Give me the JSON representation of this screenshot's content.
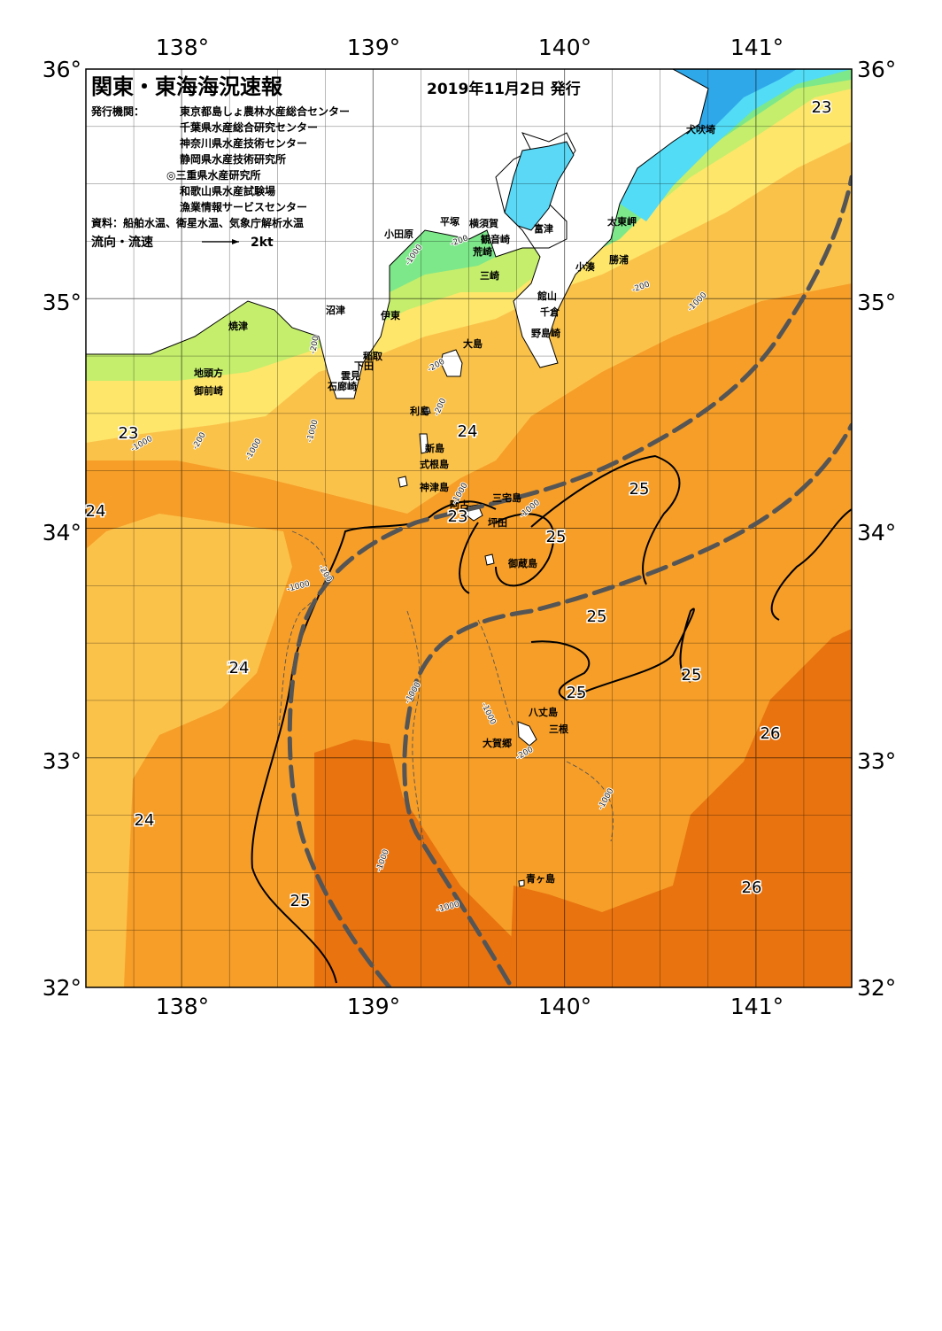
{
  "header": {
    "title": "関東・東海海況速報",
    "date": "2019年11月2日 発行",
    "issuer_label": "発行機関：",
    "issuers": [
      "東京都島しょ農林水産総合センター",
      "千葉県水産総合研究センター",
      "神奈川県水産技術センター",
      "静岡県水産技術研究所",
      "◎三重県水産研究所",
      "和歌山県水産試験場",
      "漁業情報サービスセンター"
    ],
    "sources": "資料：船舶水温、衛星水温、気象庁解析水温",
    "current_label": "流向・流速",
    "current_scale": "2kt"
  },
  "axes": {
    "lon_labels": [
      "138°",
      "139°",
      "140°",
      "141°"
    ],
    "lat_labels": [
      "36°",
      "35°",
      "34°",
      "33°",
      "32°"
    ]
  },
  "colors": {
    "c20": "#2fa8ea",
    "c21": "#52dcf6",
    "c21b": "#5ae6c8",
    "c22": "#7de88a",
    "c22b": "#c4ee6c",
    "c23": "#fde66a",
    "c24": "#fbc24a",
    "c25": "#f69e28",
    "c26": "#e8730f",
    "land": "#ffffff",
    "kuroshio": "#555555"
  },
  "places": [
    {
      "name": "犬吠埼"
    },
    {
      "name": "太東岬"
    },
    {
      "name": "勝浦"
    },
    {
      "name": "小湊"
    },
    {
      "name": "館山"
    },
    {
      "name": "千倉"
    },
    {
      "name": "野島崎"
    },
    {
      "name": "富津"
    },
    {
      "name": "横須賀"
    },
    {
      "name": "観音崎"
    },
    {
      "name": "荒崎"
    },
    {
      "name": "三崎"
    },
    {
      "name": "平塚"
    },
    {
      "name": "小田原"
    },
    {
      "name": "伊東"
    },
    {
      "name": "沼津"
    },
    {
      "name": "焼津"
    },
    {
      "name": "稲取"
    },
    {
      "name": "下田"
    },
    {
      "name": "雲見"
    },
    {
      "name": "石廊崎"
    },
    {
      "name": "地頭方"
    },
    {
      "name": "御前崎"
    },
    {
      "name": "大島"
    },
    {
      "name": "利島"
    },
    {
      "name": "新島"
    },
    {
      "name": "式根島"
    },
    {
      "name": "神津島"
    },
    {
      "name": "三宅島"
    },
    {
      "name": "坪田"
    },
    {
      "name": "阿古"
    },
    {
      "name": "御蔵島"
    },
    {
      "name": "八丈島"
    },
    {
      "name": "三根"
    },
    {
      "name": "大賀郷"
    },
    {
      "name": "青ヶ島"
    }
  ],
  "temp_labels": [
    {
      "value": "23"
    },
    {
      "value": "23"
    },
    {
      "value": "24"
    },
    {
      "value": "24"
    },
    {
      "value": "24"
    },
    {
      "value": "24"
    },
    {
      "value": "25"
    },
    {
      "value": "25"
    },
    {
      "value": "23"
    },
    {
      "value": "25"
    },
    {
      "value": "25"
    },
    {
      "value": "25"
    },
    {
      "value": "24"
    },
    {
      "value": "26"
    },
    {
      "value": "25"
    },
    {
      "value": "26"
    }
  ],
  "depth_labels": [
    {
      "value": "-1000"
    },
    {
      "value": "-200"
    },
    {
      "value": "-200"
    },
    {
      "value": "-1000"
    },
    {
      "value": "-200"
    },
    {
      "value": "-1000"
    },
    {
      "value": "-200"
    },
    {
      "value": "-1000"
    },
    {
      "value": "-200"
    },
    {
      "value": "-1000"
    },
    {
      "value": "-200"
    },
    {
      "value": "-1000"
    },
    {
      "value": "-1000"
    },
    {
      "value": "-1000"
    },
    {
      "value": "-1000"
    },
    {
      "value": "-1000"
    },
    {
      "value": "-1000"
    },
    {
      "value": "-200"
    },
    {
      "value": "-1000"
    },
    {
      "value": "-1000"
    },
    {
      "value": "-200"
    }
  ]
}
